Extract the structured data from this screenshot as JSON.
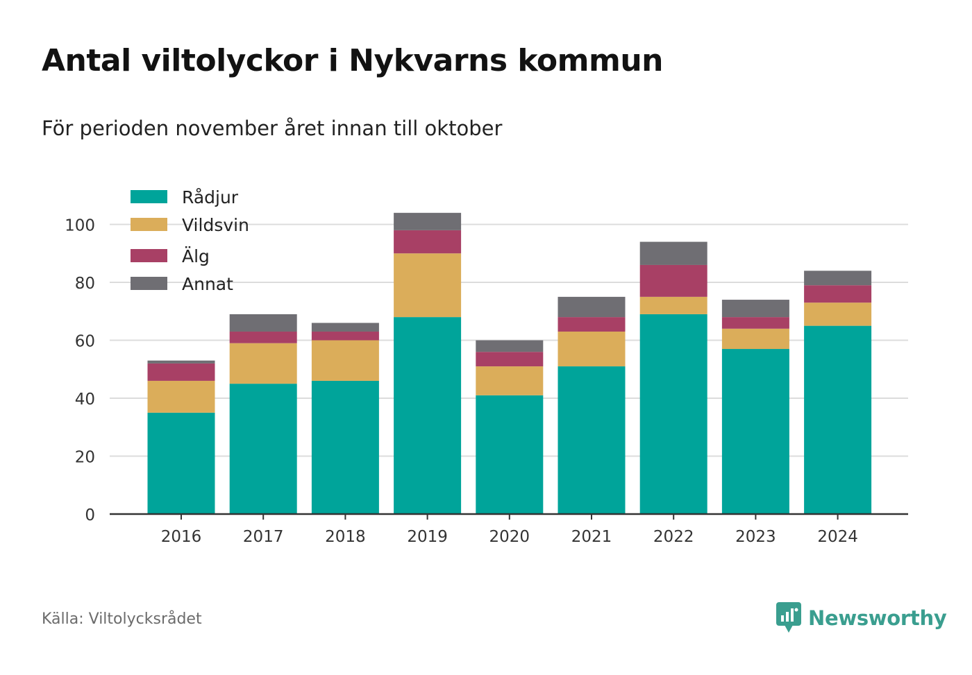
{
  "header": {
    "title": "Antal viltolyckor i Nykvarns kommun",
    "subtitle": "För perioden november året innan till oktober"
  },
  "footer": {
    "source": "Källa: Viltolycksrådet",
    "brand": "Newsworthy",
    "brand_color": "#3a9e8f"
  },
  "chart_data": {
    "type": "bar",
    "stacked": true,
    "categories": [
      "2016",
      "2017",
      "2018",
      "2019",
      "2020",
      "2021",
      "2022",
      "2023",
      "2024"
    ],
    "series": [
      {
        "name": "Rådjur",
        "color": "#00a49a",
        "values": [
          35,
          45,
          46,
          68,
          41,
          51,
          69,
          57,
          65
        ]
      },
      {
        "name": "Vildsvin",
        "color": "#dbad5a",
        "values": [
          11,
          14,
          14,
          22,
          10,
          12,
          6,
          7,
          8
        ]
      },
      {
        "name": "Älg",
        "color": "#a84065",
        "values": [
          6,
          4,
          3,
          8,
          5,
          5,
          11,
          4,
          6
        ]
      },
      {
        "name": "Annat",
        "color": "#6f6e73",
        "values": [
          1,
          6,
          3,
          6,
          4,
          7,
          8,
          6,
          5
        ]
      }
    ],
    "yticks": [
      0,
      20,
      40,
      60,
      80,
      100
    ],
    "ylim": [
      0,
      110
    ],
    "grid": true,
    "legend_position": "top-left",
    "xlabel": "",
    "ylabel": ""
  }
}
